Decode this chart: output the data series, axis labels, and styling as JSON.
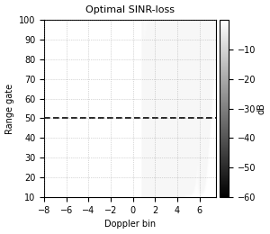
{
  "title": "Optimal SINR-loss",
  "xlabel": "Doppler bin",
  "ylabel": "Range gate",
  "xlim": [
    -8,
    7.5
  ],
  "ylim": [
    10,
    100
  ],
  "xticks": [
    -8,
    -6,
    -4,
    -2,
    0,
    2,
    4,
    6
  ],
  "yticks": [
    10,
    20,
    30,
    40,
    50,
    60,
    70,
    80,
    90,
    100
  ],
  "colorbar_label": "dB",
  "colorbar_ticks": [
    -10,
    -20,
    -30,
    -40,
    -50,
    -60
  ],
  "vmin": -60,
  "vmax": 0,
  "dashed_line_y": 50,
  "N_range": 200,
  "N_doppler": 300,
  "background_color": "#ffffff"
}
